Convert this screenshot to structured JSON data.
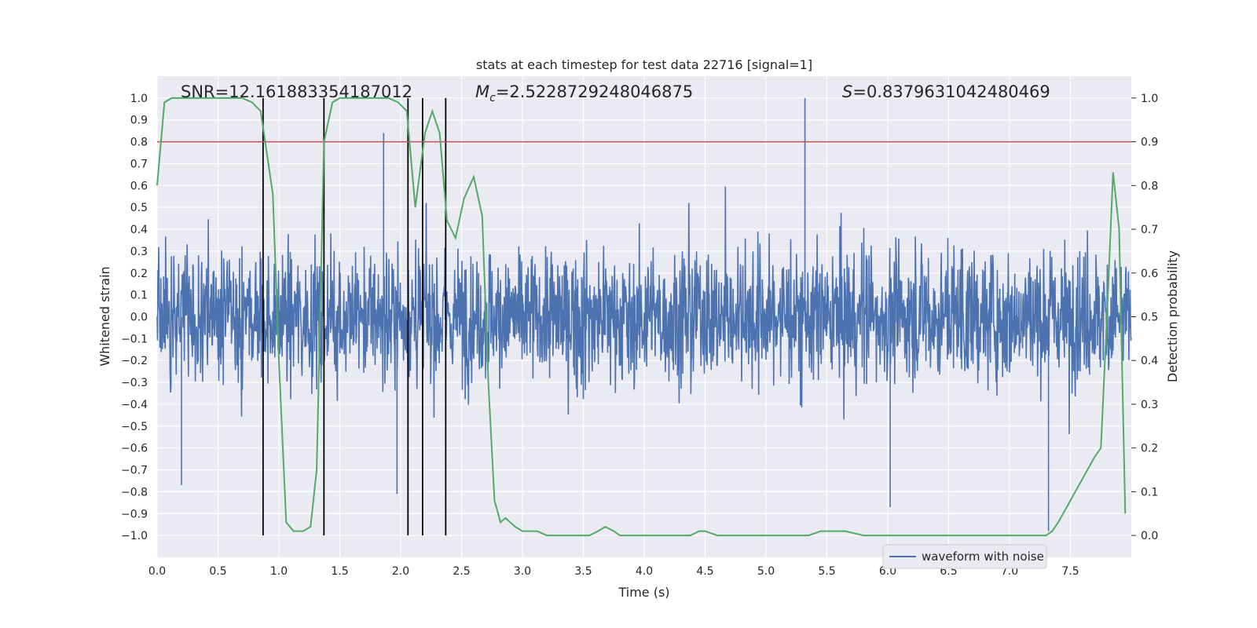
{
  "chart_data": {
    "type": "line",
    "title": "stats at each timestep for test data 22716 [signal=1]",
    "xlabel": "Time (s)",
    "ylabel_left": "Whitened strain",
    "ylabel_right": "Detection probability",
    "xlim": [
      0.0,
      8.0
    ],
    "ylim_left": [
      -1.1,
      1.1
    ],
    "ylim_right": [
      -0.05,
      1.05
    ],
    "xticks": [
      0.0,
      0.5,
      1.0,
      1.5,
      2.0,
      2.5,
      3.0,
      3.5,
      4.0,
      4.5,
      5.0,
      5.5,
      6.0,
      6.5,
      7.0,
      7.5
    ],
    "xtick_labels": [
      "0.0",
      "0.5",
      "1.0",
      "1.5",
      "2.0",
      "2.5",
      "3.0",
      "3.5",
      "4.0",
      "4.5",
      "5.0",
      "5.5",
      "6.0",
      "6.5",
      "7.0",
      "7.5"
    ],
    "yticks_left": [
      1.0,
      0.9,
      0.8,
      0.7,
      0.6,
      0.5,
      0.4,
      0.3,
      0.2,
      0.1,
      0.0,
      -0.1,
      -0.2,
      -0.3,
      -0.4,
      -0.5,
      -0.6,
      -0.7,
      -0.8,
      -0.9,
      -1.0
    ],
    "yticks_left_labels": [
      "1.0",
      "0.9",
      "0.8",
      "0.7",
      "0.6",
      "0.5",
      "0.4",
      "0.3",
      "0.2",
      "0.1",
      "0.0",
      "−0.1",
      "−0.2",
      "−0.3",
      "−0.4",
      "−0.5",
      "−0.6",
      "−0.7",
      "−0.8",
      "−0.9",
      "−1.0"
    ],
    "yticks_right": [
      1.0,
      0.9,
      0.8,
      0.7,
      0.6,
      0.5,
      0.4,
      0.3,
      0.2,
      0.1,
      0.0
    ],
    "yticks_right_labels": [
      "1.0",
      "0.9",
      "0.8",
      "0.7",
      "0.6",
      "0.5",
      "0.4",
      "0.3",
      "0.2",
      "0.1",
      "0.0"
    ],
    "annotations": {
      "snr": "SNR=12.161883354187012",
      "mc_symbol": "M",
      "mc_sub": "c",
      "mc_value": "=2.5228729248046875",
      "s_symbol": "S",
      "s_value": "=0.8379631042480469"
    },
    "threshold": {
      "value": 0.9,
      "axis": "right",
      "color": "#c44e52"
    },
    "vertical_lines": {
      "x": [
        0.87,
        1.37,
        2.06,
        2.18,
        2.37
      ],
      "y_range": [
        -1.0,
        1.0
      ],
      "color": "#000000"
    },
    "legend": {
      "label": "waveform with noise",
      "placement": "lower-right"
    },
    "waveform": {
      "name": "waveform with noise",
      "color": "#4c72b0",
      "typical_amplitude": 0.38,
      "notable_peaks": [
        {
          "x": 5.32,
          "y": 1.0
        },
        {
          "x": 1.86,
          "y": 0.84
        },
        {
          "x": 7.32,
          "y": -0.98
        },
        {
          "x": 6.02,
          "y": -0.87
        },
        {
          "x": 1.97,
          "y": -0.81
        },
        {
          "x": 0.2,
          "y": -0.77
        }
      ]
    },
    "detection_probability": {
      "name": "detection probability",
      "color": "#55a868",
      "axis": "right",
      "x": [
        0.0,
        0.06,
        0.12,
        0.2,
        0.3,
        0.4,
        0.5,
        0.6,
        0.7,
        0.78,
        0.85,
        0.95,
        1.0,
        1.06,
        1.12,
        1.2,
        1.26,
        1.31,
        1.37,
        1.44,
        1.5,
        1.6,
        1.7,
        1.8,
        1.9,
        1.98,
        2.05,
        2.12,
        2.2,
        2.26,
        2.32,
        2.38,
        2.45,
        2.52,
        2.6,
        2.67,
        2.72,
        2.77,
        2.82,
        2.86,
        2.94,
        3.0,
        3.12,
        3.2,
        3.35,
        3.45,
        3.55,
        3.62,
        3.68,
        3.75,
        3.8,
        3.95,
        4.1,
        4.25,
        4.38,
        4.45,
        4.5,
        4.6,
        4.8,
        5.0,
        5.2,
        5.35,
        5.45,
        5.55,
        5.65,
        5.8,
        6.0,
        6.3,
        6.6,
        7.0,
        7.2,
        7.3,
        7.35,
        7.4,
        7.5,
        7.6,
        7.7,
        7.75,
        7.8,
        7.85,
        7.9,
        7.95
      ],
      "y": [
        0.8,
        0.99,
        1.0,
        1.0,
        1.0,
        1.0,
        1.0,
        1.0,
        1.0,
        0.99,
        0.97,
        0.78,
        0.4,
        0.03,
        0.01,
        0.01,
        0.02,
        0.15,
        0.9,
        0.99,
        1.0,
        1.0,
        1.0,
        1.0,
        1.0,
        0.99,
        0.97,
        0.75,
        0.92,
        0.97,
        0.92,
        0.72,
        0.68,
        0.77,
        0.82,
        0.73,
        0.35,
        0.08,
        0.03,
        0.04,
        0.02,
        0.01,
        0.01,
        0.0,
        0.0,
        0.0,
        0.0,
        0.01,
        0.02,
        0.01,
        0.0,
        0.0,
        0.0,
        0.0,
        0.0,
        0.01,
        0.01,
        0.0,
        0.0,
        0.0,
        0.0,
        0.0,
        0.01,
        0.01,
        0.01,
        0.0,
        0.0,
        0.0,
        0.0,
        0.0,
        0.0,
        0.0,
        0.01,
        0.03,
        0.08,
        0.13,
        0.18,
        0.2,
        0.5,
        0.83,
        0.7,
        0.05
      ]
    }
  }
}
